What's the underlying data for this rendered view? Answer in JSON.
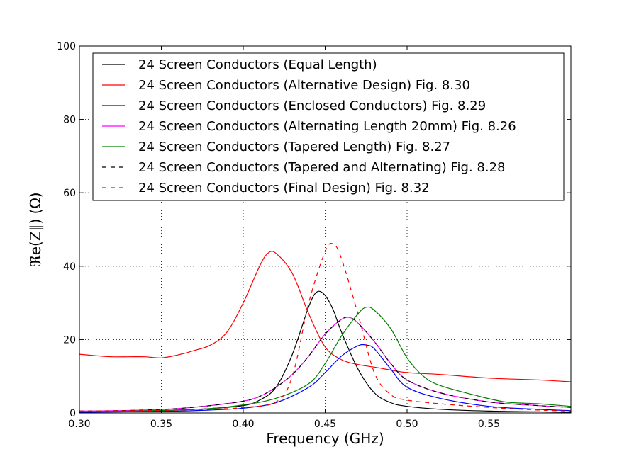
{
  "chart_data": {
    "type": "line",
    "xlabel": "Frequency (GHz)",
    "ylabel": "ℜe(Z∥) (Ω)",
    "xlim": [
      0.3,
      0.6
    ],
    "ylim": [
      0,
      100
    ],
    "xticks": [
      0.3,
      0.35,
      0.4,
      0.45,
      0.5,
      0.55
    ],
    "xtick_labels": [
      "0.30",
      "0.35",
      "0.40",
      "0.45",
      "0.50",
      "0.55"
    ],
    "yticks": [
      0,
      20,
      40,
      60,
      80,
      100
    ],
    "ytick_labels": [
      "0",
      "20",
      "40",
      "60",
      "80",
      "100"
    ],
    "grid": true,
    "legend_position": "top",
    "series": [
      {
        "name": "24 Screen Conductors (Equal Length)",
        "color": "#000000",
        "dash": "solid",
        "x": [
          0.3,
          0.32,
          0.34,
          0.36,
          0.38,
          0.4,
          0.41,
          0.42,
          0.43,
          0.44,
          0.445,
          0.45,
          0.455,
          0.46,
          0.47,
          0.48,
          0.49,
          0.5,
          0.52,
          0.55,
          0.58,
          0.6
        ],
        "y": [
          0.3,
          0.4,
          0.5,
          0.8,
          1.2,
          2.0,
          3.5,
          7.0,
          16.0,
          29.0,
          33.0,
          32.0,
          28.0,
          22.0,
          12.0,
          5.5,
          2.8,
          1.8,
          1.0,
          0.5,
          0.3,
          0.2
        ]
      },
      {
        "name": "24 Screen Conductors (Alternative Design) Fig. 8.30",
        "color": "#ff0000",
        "dash": "solid",
        "x": [
          0.3,
          0.31,
          0.32,
          0.33,
          0.34,
          0.35,
          0.36,
          0.37,
          0.38,
          0.39,
          0.4,
          0.41,
          0.415,
          0.42,
          0.43,
          0.44,
          0.45,
          0.46,
          0.47,
          0.48,
          0.49,
          0.5,
          0.52,
          0.55,
          0.58,
          0.6
        ],
        "y": [
          16.0,
          15.6,
          15.3,
          15.3,
          15.3,
          15.0,
          15.8,
          17.0,
          18.5,
          22.0,
          30.0,
          40.0,
          43.5,
          43.5,
          38.0,
          27.0,
          18.0,
          14.5,
          13.2,
          12.5,
          11.7,
          11.0,
          10.5,
          9.5,
          9.0,
          8.5
        ]
      },
      {
        "name": "24 Screen Conductors (Enclosed Conductors) Fig. 8.29",
        "color": "#0000ff",
        "dash": "solid",
        "x": [
          0.3,
          0.33,
          0.36,
          0.38,
          0.4,
          0.42,
          0.44,
          0.45,
          0.46,
          0.47,
          0.475,
          0.48,
          0.49,
          0.5,
          0.52,
          0.55,
          0.58,
          0.6
        ],
        "y": [
          0.2,
          0.3,
          0.5,
          0.8,
          1.3,
          2.8,
          7.0,
          11.0,
          15.5,
          18.3,
          18.5,
          17.5,
          12.0,
          7.0,
          4.0,
          1.8,
          1.0,
          0.6
        ]
      },
      {
        "name": "24 Screen Conductors (Alternating Length 20mm) Fig. 8.26",
        "color": "#ff00ff",
        "dash": "solid",
        "x": [
          0.3,
          0.32,
          0.34,
          0.36,
          0.38,
          0.4,
          0.41,
          0.42,
          0.43,
          0.44,
          0.45,
          0.46,
          0.465,
          0.47,
          0.48,
          0.49,
          0.5,
          0.52,
          0.55,
          0.58,
          0.6
        ],
        "y": [
          0.5,
          0.6,
          0.8,
          1.2,
          2.0,
          3.2,
          4.5,
          7.0,
          10.5,
          15.5,
          21.5,
          25.5,
          26.0,
          24.5,
          19.5,
          13.5,
          9.0,
          5.5,
          3.0,
          2.0,
          1.5
        ]
      },
      {
        "name": "24 Screen Conductors (Tapered Length) Fig. 8.27",
        "color": "#008000",
        "dash": "solid",
        "x": [
          0.3,
          0.33,
          0.36,
          0.38,
          0.4,
          0.42,
          0.44,
          0.45,
          0.46,
          0.47,
          0.475,
          0.48,
          0.49,
          0.5,
          0.51,
          0.52,
          0.54,
          0.56,
          0.58,
          0.6
        ],
        "y": [
          0.3,
          0.5,
          0.8,
          1.2,
          2.2,
          4.0,
          8.0,
          13.5,
          21.0,
          27.0,
          28.8,
          28.0,
          23.0,
          15.0,
          10.0,
          7.5,
          5.0,
          3.0,
          2.5,
          1.8
        ]
      },
      {
        "name": "24 Screen Conductors (Tapered and Alternating) Fig. 8.28",
        "color": "#000000",
        "dash": "dashed",
        "x": [
          0.3,
          0.32,
          0.34,
          0.36,
          0.38,
          0.4,
          0.41,
          0.42,
          0.43,
          0.44,
          0.45,
          0.46,
          0.465,
          0.47,
          0.48,
          0.49,
          0.5,
          0.52,
          0.55,
          0.58,
          0.6
        ],
        "y": [
          0.5,
          0.6,
          0.8,
          1.2,
          2.0,
          3.2,
          4.5,
          7.0,
          10.5,
          15.5,
          21.5,
          25.5,
          26.0,
          24.5,
          19.5,
          13.5,
          9.0,
          5.5,
          3.0,
          2.0,
          1.5
        ]
      },
      {
        "name": "24 Screen Conductors (Final Design) Fig. 8.32",
        "color": "#ff0000",
        "dash": "dashed",
        "x": [
          0.3,
          0.33,
          0.36,
          0.38,
          0.4,
          0.42,
          0.43,
          0.44,
          0.45,
          0.455,
          0.46,
          0.47,
          0.48,
          0.49,
          0.5,
          0.52,
          0.55,
          0.58,
          0.6
        ],
        "y": [
          0.5,
          0.6,
          0.8,
          1.0,
          1.5,
          3.0,
          10.0,
          30.0,
          44.0,
          46.0,
          42.0,
          27.0,
          11.0,
          5.0,
          3.5,
          2.5,
          1.5,
          0.8,
          0.5
        ]
      }
    ]
  }
}
